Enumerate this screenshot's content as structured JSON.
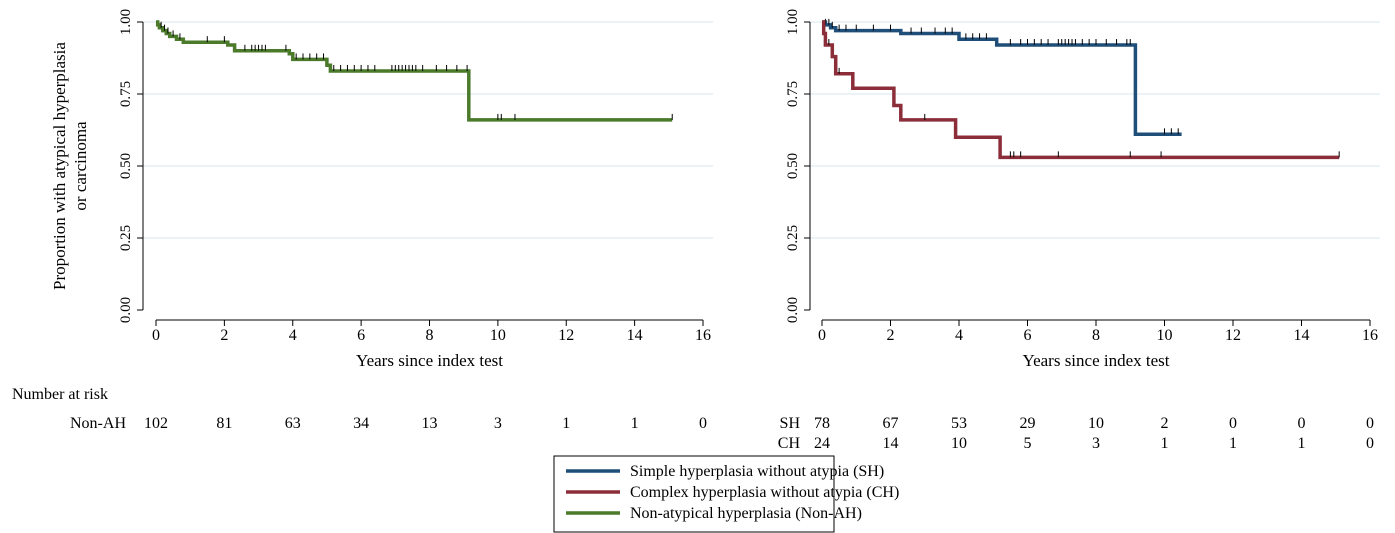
{
  "chart_data": [
    {
      "type": "line",
      "title": "",
      "xlabel": "Years since index test",
      "ylabel": "Proportion with atypical hyperplasia or carcinoma",
      "ylabel_lines": [
        "Proportion with atypical hyperplasia",
        "or carcinoma"
      ],
      "xlim": [
        0,
        16
      ],
      "ylim": [
        0,
        1
      ],
      "x_ticks": [
        0,
        2,
        4,
        6,
        8,
        10,
        12,
        14,
        16
      ],
      "x_tick_labels": [
        "0",
        "2",
        "4",
        "6",
        "8",
        "10",
        "12",
        "14",
        "16"
      ],
      "y_ticks": [
        0,
        0.25,
        0.5,
        0.75,
        1
      ],
      "y_tick_labels": [
        "0.00",
        "0.25",
        "0.50",
        "0.75",
        "1.00"
      ],
      "grid": true,
      "series": [
        {
          "name": "Non-atypical hyperplasia (Non-AH)",
          "color": "#4a7a2a",
          "steps": [
            [
              0,
              1.0
            ],
            [
              0.05,
              0.99
            ],
            [
              0.1,
              0.98
            ],
            [
              0.2,
              0.97
            ],
            [
              0.3,
              0.96
            ],
            [
              0.4,
              0.95
            ],
            [
              0.6,
              0.94
            ],
            [
              0.8,
              0.93
            ],
            [
              2.1,
              0.92
            ],
            [
              2.3,
              0.9
            ],
            [
              3.9,
              0.89
            ],
            [
              4.0,
              0.87
            ],
            [
              5.0,
              0.85
            ],
            [
              5.1,
              0.83
            ],
            [
              9.15,
              0.66
            ],
            [
              15.1,
              0.66
            ]
          ],
          "censored": [
            0.15,
            0.25,
            0.35,
            0.5,
            0.7,
            1.5,
            2.0,
            2.6,
            2.8,
            2.9,
            3.0,
            3.1,
            3.2,
            3.8,
            4.1,
            4.3,
            4.5,
            4.7,
            4.9,
            5.2,
            5.4,
            5.6,
            5.8,
            6.0,
            6.2,
            6.4,
            6.9,
            7.0,
            7.1,
            7.2,
            7.3,
            7.4,
            7.5,
            7.6,
            7.8,
            8.2,
            8.5,
            8.8,
            9.1,
            10.0,
            10.1,
            10.5,
            15.1
          ]
        }
      ]
    },
    {
      "type": "line",
      "title": "",
      "xlabel": "Years since index test",
      "ylabel": "",
      "xlim": [
        0,
        16
      ],
      "ylim": [
        0,
        1
      ],
      "x_ticks": [
        0,
        2,
        4,
        6,
        8,
        10,
        12,
        14,
        16
      ],
      "x_tick_labels": [
        "0",
        "2",
        "4",
        "6",
        "8",
        "10",
        "12",
        "14",
        "16"
      ],
      "y_ticks": [
        0,
        0.25,
        0.5,
        0.75,
        1
      ],
      "y_tick_labels": [
        "0.00",
        "0.25",
        "0.50",
        "0.75",
        "1.00"
      ],
      "grid": true,
      "series": [
        {
          "name": "Simple hyperplasia without atypia (SH)",
          "color": "#1f4e79",
          "steps": [
            [
              0,
              1.0
            ],
            [
              0.1,
              0.99
            ],
            [
              0.25,
              0.98
            ],
            [
              0.4,
              0.97
            ],
            [
              2.3,
              0.96
            ],
            [
              4.0,
              0.94
            ],
            [
              5.1,
              0.92
            ],
            [
              9.15,
              0.61
            ],
            [
              10.5,
              0.61
            ]
          ],
          "censored": [
            0.1,
            0.2,
            0.3,
            0.5,
            0.7,
            1.0,
            1.5,
            2.0,
            2.6,
            2.9,
            3.3,
            3.6,
            3.8,
            4.2,
            4.4,
            4.6,
            4.8,
            5.5,
            5.8,
            6.0,
            6.2,
            6.4,
            6.6,
            6.9,
            7.0,
            7.1,
            7.2,
            7.3,
            7.4,
            7.6,
            7.8,
            8.0,
            8.3,
            8.6,
            8.9,
            9.0,
            10.0,
            10.2,
            10.4
          ]
        },
        {
          "name": "Complex hyperplasia without atypia (CH)",
          "color": "#8b2e3a",
          "steps": [
            [
              0,
              1.0
            ],
            [
              0.05,
              0.96
            ],
            [
              0.1,
              0.92
            ],
            [
              0.3,
              0.88
            ],
            [
              0.4,
              0.82
            ],
            [
              0.9,
              0.77
            ],
            [
              2.1,
              0.71
            ],
            [
              2.3,
              0.66
            ],
            [
              3.9,
              0.6
            ],
            [
              5.2,
              0.53
            ],
            [
              15.1,
              0.53
            ]
          ],
          "censored": [
            0.2,
            0.5,
            3.0,
            5.5,
            5.6,
            5.8,
            6.9,
            9.0,
            9.9,
            15.1
          ]
        }
      ]
    }
  ],
  "risk_tables": [
    {
      "header": "Number at risk",
      "rows": [
        {
          "label": "Non-AH",
          "values": [
            "102",
            "81",
            "63",
            "34",
            "13",
            "3",
            "1",
            "1",
            "0"
          ]
        }
      ]
    },
    {
      "header": "",
      "rows": [
        {
          "label": "SH",
          "values": [
            "78",
            "67",
            "53",
            "29",
            "10",
            "2",
            "0",
            "0",
            "0"
          ]
        },
        {
          "label": "CH",
          "values": [
            "24",
            "14",
            "10",
            "5",
            "3",
            "1",
            "1",
            "1",
            "0"
          ]
        }
      ]
    }
  ],
  "legend": {
    "placement": "bottom-center",
    "entries": [
      {
        "label": "Simple hyperplasia without atypia (SH)",
        "color": "#1f4e79"
      },
      {
        "label": "Complex hyperplasia without atypia (CH)",
        "color": "#8b2e3a"
      },
      {
        "label": "Non-atypical hyperplasia (Non-AH)",
        "color": "#4a7a2a"
      }
    ]
  },
  "colors": {
    "grid": "#d7e7ee",
    "axis": "#000000"
  }
}
